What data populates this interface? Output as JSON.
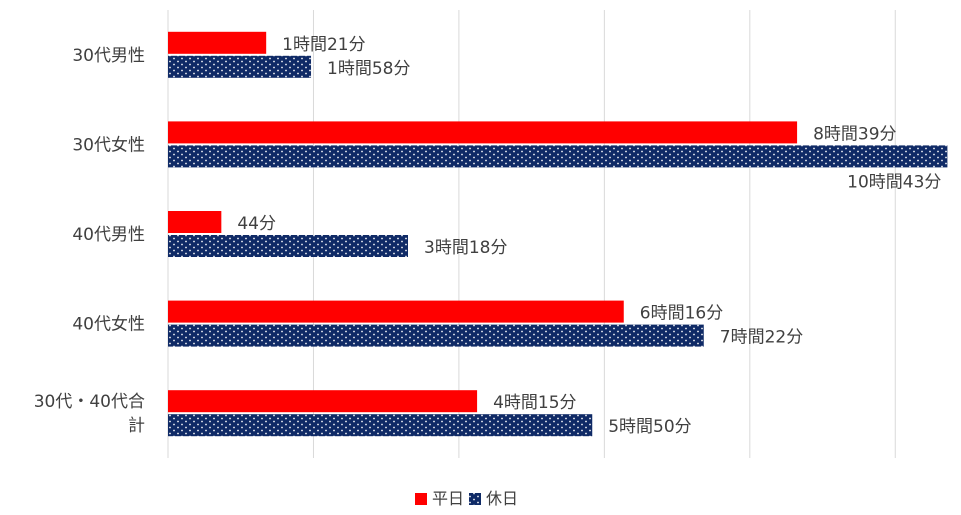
{
  "colors": {
    "weekday": "#ff0000",
    "holiday": "#0f2a66",
    "holiday_dots": "#ffffff",
    "grid": "#d9d9d9",
    "text": "#404040"
  },
  "chart_data": {
    "type": "bar",
    "orientation": "horizontal",
    "title": "",
    "xlabel": "",
    "ylabel": "",
    "unit": "minutes",
    "xlim": [
      0,
      660
    ],
    "grid": true,
    "legend_position": "bottom",
    "categories": [
      "30代男性",
      "30代女性",
      "40代男性",
      "40代女性",
      "30代・40代合計"
    ],
    "series": [
      {
        "name": "平日",
        "values": [
          81,
          519,
          44,
          376,
          255
        ],
        "labels": [
          "1時間21分",
          "8時間39分",
          "44分",
          "6時間16分",
          "4時間15分"
        ]
      },
      {
        "name": "休日",
        "values": [
          118,
          643,
          198,
          442,
          350
        ],
        "labels": [
          "1時間58分",
          "10時間43分",
          "3時間18分",
          "7時間22分",
          "5時間50分"
        ]
      }
    ]
  }
}
